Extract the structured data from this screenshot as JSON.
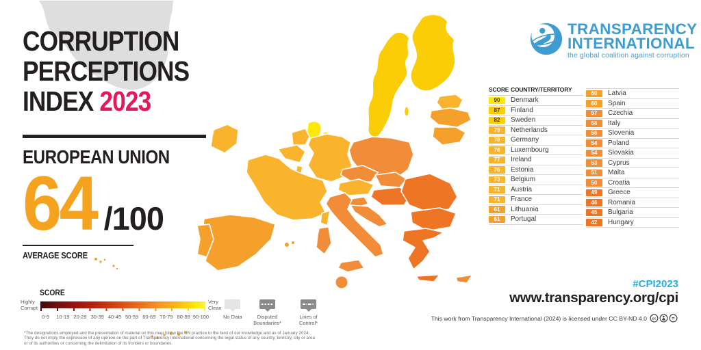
{
  "title": {
    "line1": "CORRUPTION",
    "line2": "PERCEPTIONS",
    "line3": "INDEX",
    "year": "2023"
  },
  "subtitle": "EUROPEAN UNION",
  "average": {
    "score": "64",
    "denominator": "/100",
    "label": "AVERAGE SCORE"
  },
  "legend": {
    "score_label": "SCORE",
    "left_label_1": "Highly",
    "left_label_2": "Corrupt",
    "right_label_1": "Very",
    "right_label_2": "Clean",
    "ranges": [
      "0-9",
      "10-19",
      "20-29",
      "30-39",
      "40-49",
      "50-59",
      "60-69",
      "70-79",
      "80-89",
      "90-100"
    ],
    "no_data": "No Data",
    "disputed": "Disputed Boundaries*",
    "lines_of_control": "Lines of Control*"
  },
  "table": {
    "header_score": "SCORE",
    "header_country": "COUNTRY/TERRITORY",
    "left_rows": [
      {
        "score": 90,
        "country": "Denmark",
        "tier": "t90"
      },
      {
        "score": 87,
        "country": "Finland",
        "tier": "t80"
      },
      {
        "score": 82,
        "country": "Sweden",
        "tier": "t80"
      },
      {
        "score": 79,
        "country": "Netherlands",
        "tier": "t70"
      },
      {
        "score": 78,
        "country": "Germany",
        "tier": "t70"
      },
      {
        "score": 78,
        "country": "Luxembourg",
        "tier": "t70"
      },
      {
        "score": 77,
        "country": "Ireland",
        "tier": "t70"
      },
      {
        "score": 76,
        "country": "Estonia",
        "tier": "t70"
      },
      {
        "score": 73,
        "country": "Belgium",
        "tier": "t70"
      },
      {
        "score": 71,
        "country": "Austria",
        "tier": "t70"
      },
      {
        "score": 71,
        "country": "France",
        "tier": "t70"
      },
      {
        "score": 61,
        "country": "Lithuania",
        "tier": "t60"
      },
      {
        "score": 61,
        "country": "Portugal",
        "tier": "t60"
      }
    ],
    "right_rows": [
      {
        "score": 60,
        "country": "Latvia",
        "tier": "t60"
      },
      {
        "score": 60,
        "country": "Spain",
        "tier": "t60"
      },
      {
        "score": 57,
        "country": "Czechia",
        "tier": "t50"
      },
      {
        "score": 56,
        "country": "Italy",
        "tier": "t50"
      },
      {
        "score": 56,
        "country": "Slovenia",
        "tier": "t50"
      },
      {
        "score": 54,
        "country": "Poland",
        "tier": "t50"
      },
      {
        "score": 54,
        "country": "Slovakia",
        "tier": "t50"
      },
      {
        "score": 53,
        "country": "Cyprus",
        "tier": "t50"
      },
      {
        "score": 51,
        "country": "Malta",
        "tier": "t50"
      },
      {
        "score": 50,
        "country": "Croatia",
        "tier": "t50"
      },
      {
        "score": 49,
        "country": "Greece",
        "tier": "t40"
      },
      {
        "score": 46,
        "country": "Romania",
        "tier": "t40"
      },
      {
        "score": 45,
        "country": "Bulgaria",
        "tier": "t40"
      },
      {
        "score": 42,
        "country": "Hungary",
        "tier": "t40"
      }
    ]
  },
  "logo": {
    "line1": "TRANSPARENCY",
    "line2": "INTERNATIONAL",
    "tagline": "the global coalition against corruption"
  },
  "footer": {
    "hashtag": "#CPI2023",
    "url": "www.transparency.org/cpi",
    "license": "This work from Transparency International (2024) is licensed under CC BY-ND 4.0"
  },
  "footnote": "*The designations employed and the presentation of material on this map follow the UN practice to the best of our knowledge and as of January 2024. They do not imply the expression of any opinion on the part of Transparency International concerning the legal status of any country, territory, city or area or of its authorities or concerning the delimitation of its frontiers or boundaries.",
  "colors": {
    "accent_pink": "#E6175C",
    "score_orange": "#F5A31E",
    "logo_blue": "#3E9CD1",
    "hashtag_blue": "#29ABE2",
    "no_data_gray": "#E4E4E4",
    "boundary_gray": "#8A8A8A",
    "tiers": {
      "90-100": "#FFE70A",
      "80-89": "#FBCD07",
      "70-79": "#F9B32C",
      "60-69": "#F6A02C",
      "50-59": "#F18C38",
      "40-49": "#ED7524"
    }
  }
}
